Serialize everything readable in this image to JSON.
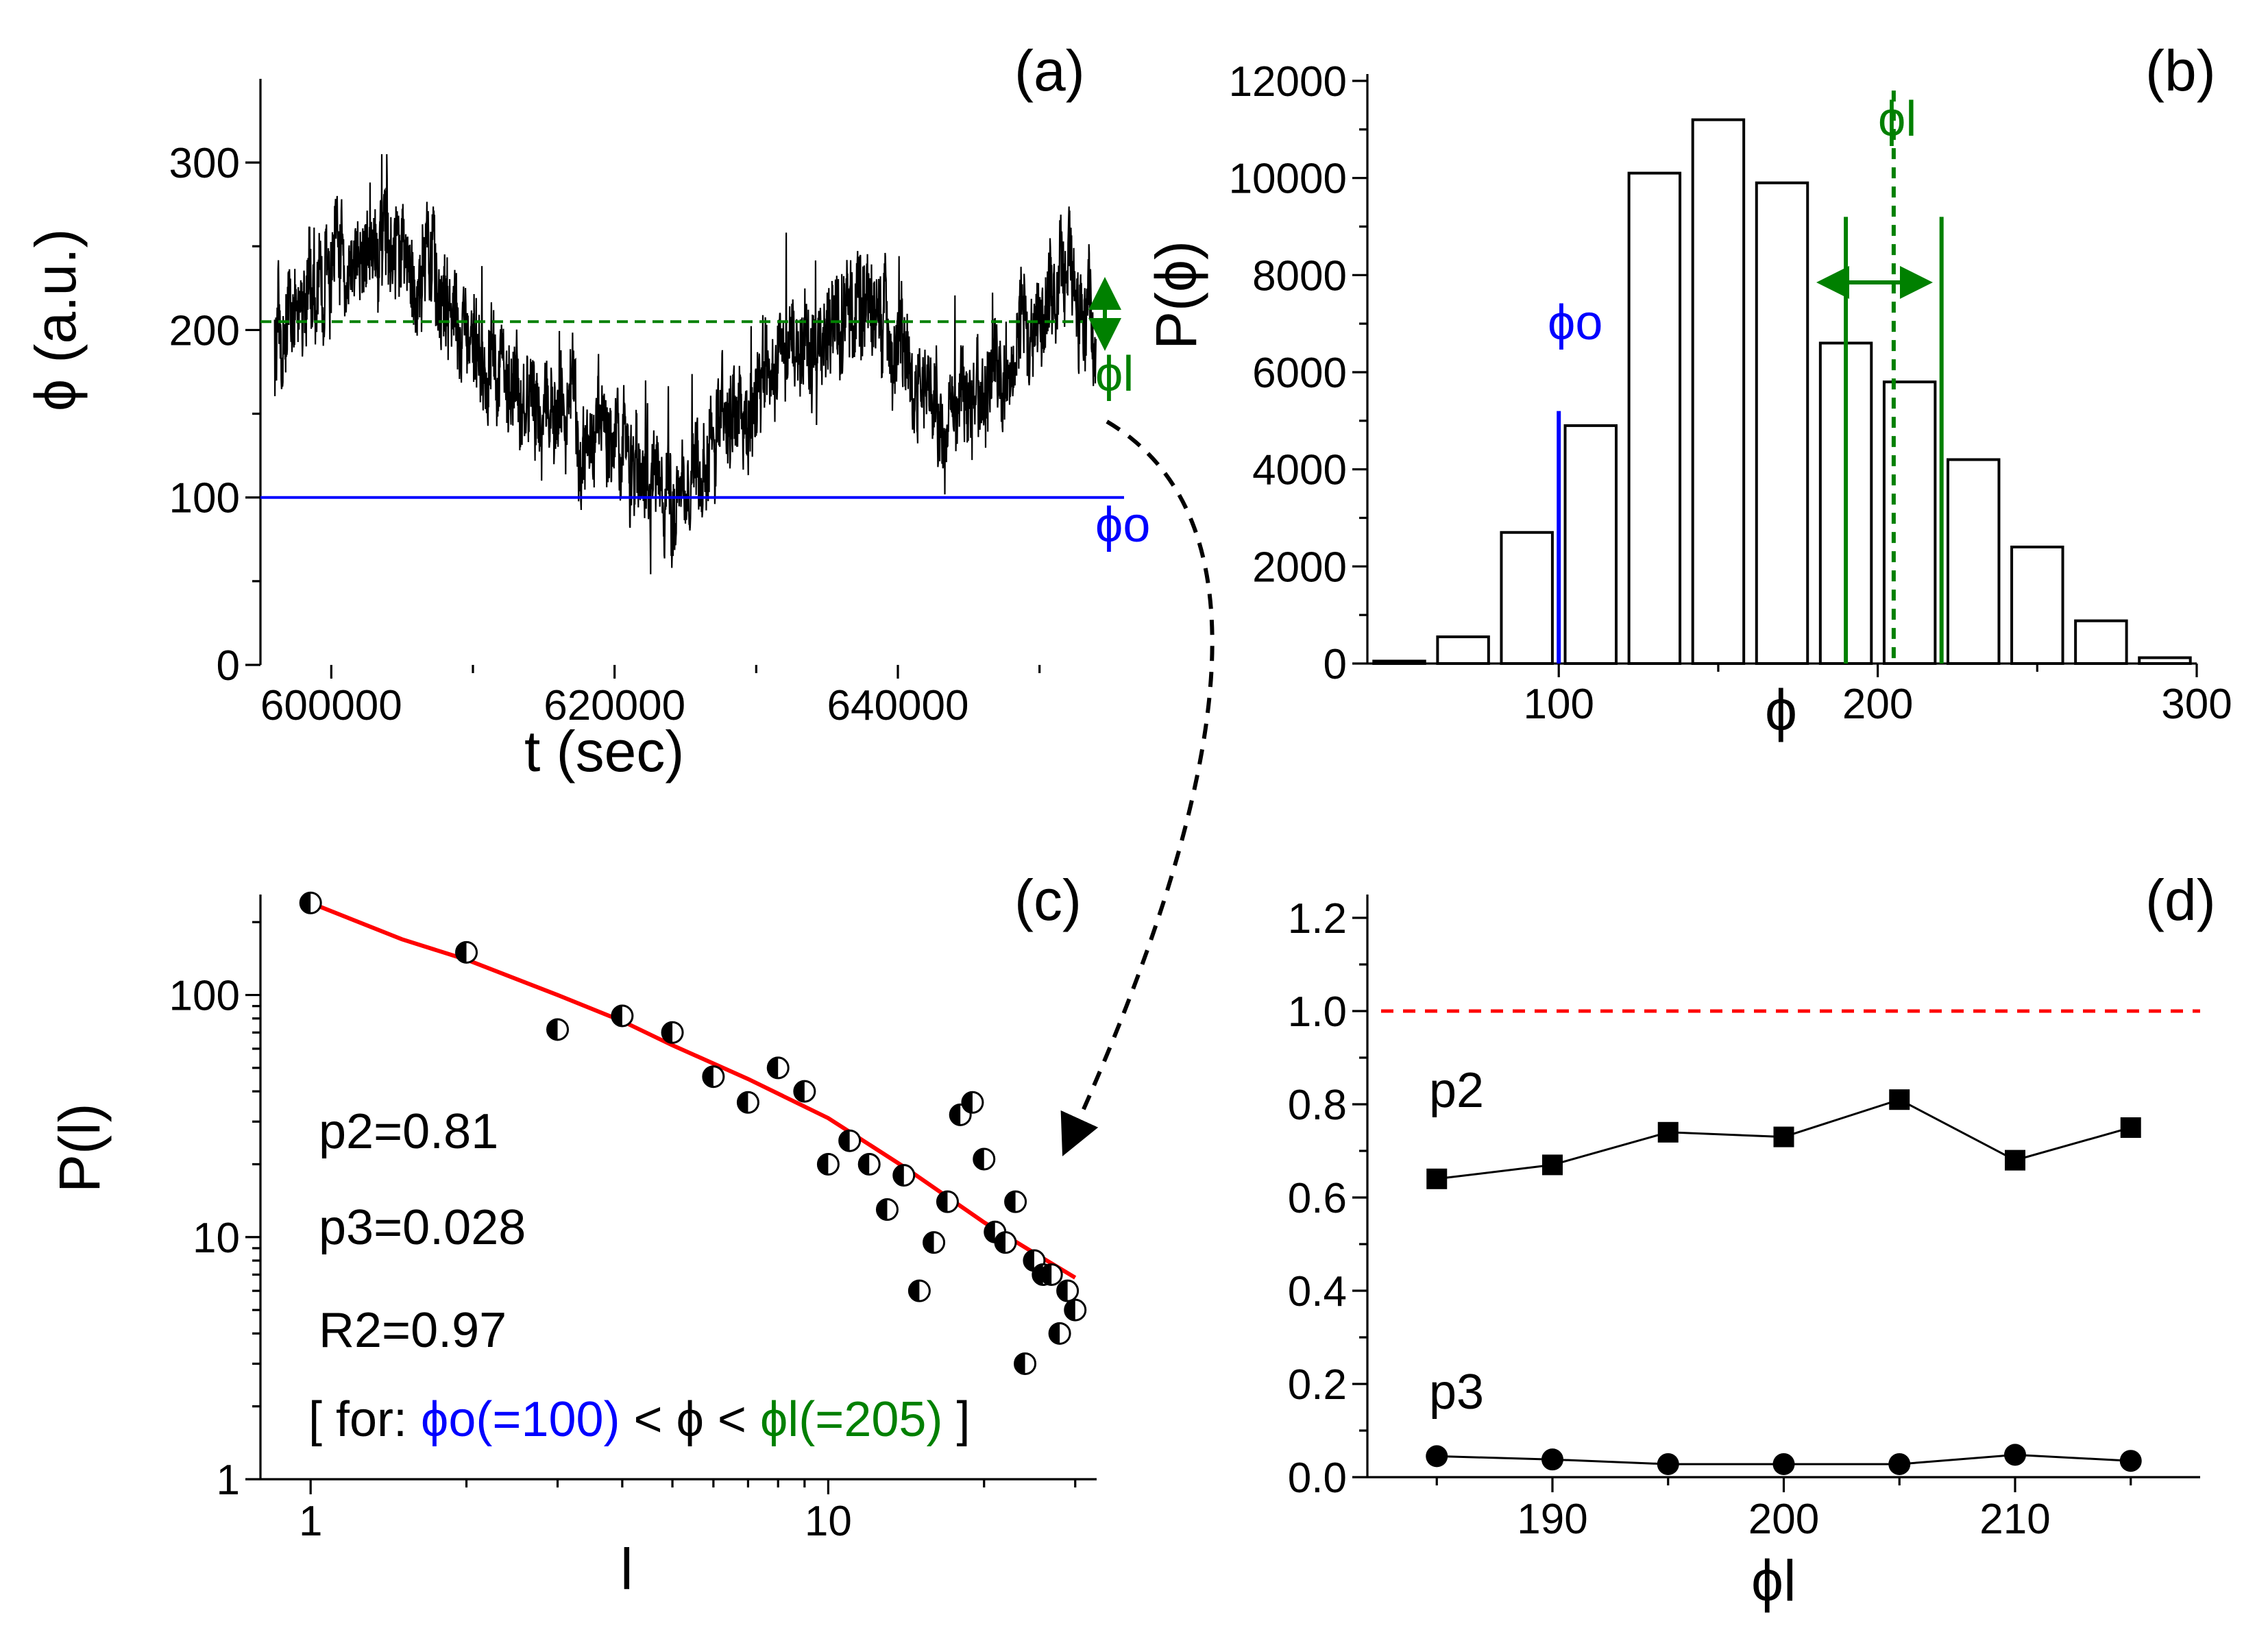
{
  "colors": {
    "trace": "#000000",
    "phi_o": "#0000ff",
    "phi_l": "#008000",
    "fit": "#ff0000",
    "reference": "#ff0000"
  },
  "chart_data": [
    {
      "panel": "(a)",
      "type": "line",
      "xlabel": "t (sec)",
      "ylabel": "ϕ (a.u.)",
      "xlim": [
        595000,
        655000
      ],
      "ylim": [
        0,
        350
      ],
      "xticks": [
        600000,
        620000,
        640000
      ],
      "yticks": [
        0,
        100,
        200,
        300
      ],
      "series": [
        {
          "name": "ϕ(t)",
          "x": [
            596000,
            600000,
            603000,
            607000,
            610000,
            613000,
            617000,
            620000,
            622000,
            624000,
            626000,
            629000,
            632000,
            635000,
            638000,
            640000,
            643000,
            646000,
            649000,
            652000,
            654000
          ],
          "y": [
            200,
            235,
            250,
            235,
            185,
            160,
            140,
            130,
            115,
            95,
            130,
            155,
            180,
            200,
            220,
            195,
            150,
            160,
            200,
            230,
            185
          ]
        }
      ],
      "hlines": [
        {
          "name": "ϕo",
          "y": 100,
          "style": "solid",
          "color": "#0000ff"
        },
        {
          "name": "ϕl",
          "y": 205,
          "style": "dashed",
          "color": "#008000"
        }
      ],
      "annotations": [
        "ϕo",
        "ϕl"
      ]
    },
    {
      "panel": "(b)",
      "type": "bar",
      "xlabel": "ϕ",
      "ylabel": "P(ϕ)",
      "xlim": [
        40,
        300
      ],
      "ylim": [
        0,
        12000
      ],
      "xticks": [
        100,
        200,
        300
      ],
      "yticks": [
        0,
        2000,
        4000,
        6000,
        8000,
        10000,
        12000
      ],
      "bin_centers": [
        50,
        70,
        90,
        110,
        130,
        150,
        170,
        190,
        210,
        230,
        250,
        270,
        290
      ],
      "values": [
        50,
        550,
        2700,
        4900,
        10100,
        11200,
        9900,
        6600,
        5800,
        4200,
        2400,
        880,
        120
      ],
      "vlines": [
        {
          "name": "ϕo",
          "x": 100,
          "style": "solid",
          "color": "#0000ff"
        },
        {
          "name": "ϕl",
          "x": 205,
          "style": "dashed",
          "color": "#008000"
        },
        {
          "x": 190,
          "style": "solid",
          "color": "#008000"
        },
        {
          "x": 220,
          "style": "solid",
          "color": "#008000"
        }
      ],
      "annotations": [
        "ϕo",
        "ϕl"
      ]
    },
    {
      "panel": "(c)",
      "type": "scatter",
      "xlabel": "l",
      "ylabel": "P(l)",
      "xscale": "log",
      "yscale": "log",
      "xlim": [
        0.8,
        33
      ],
      "ylim": [
        1,
        260
      ],
      "xticks": [
        1,
        10
      ],
      "yticks": [
        1,
        10,
        100
      ],
      "points": {
        "x": [
          1,
          2,
          3,
          4,
          5,
          6,
          7,
          8,
          9,
          10,
          11,
          12,
          13,
          14,
          15,
          16,
          17,
          18,
          19,
          20,
          21,
          22,
          23,
          24,
          25,
          26,
          27,
          28,
          29,
          30
        ],
        "y": [
          240,
          150,
          72,
          82,
          70,
          46,
          36,
          50,
          40,
          20,
          25,
          20,
          13,
          18,
          6,
          9.5,
          14,
          32,
          36,
          21,
          10.5,
          9.5,
          14,
          3,
          8,
          7,
          7,
          4,
          6,
          5
        ]
      },
      "fit": {
        "name": "fit",
        "x": [
          1,
          1.5,
          2,
          3,
          4,
          5,
          7,
          10,
          14,
          20,
          25,
          30
        ],
        "y": [
          240,
          170,
          140,
          100,
          78,
          62,
          45,
          31,
          19.5,
          11.5,
          8.6,
          6.8
        ]
      },
      "text": {
        "p2": "p2=0.81",
        "p3": "p3=0.028",
        "r2": "R2=0.97",
        "cond_open": "[ for: ",
        "cond_phio": "ϕo(=100)",
        "cond_mid": " < ϕ < ",
        "cond_phil": "ϕl(=205)",
        "cond_close": " ]"
      }
    },
    {
      "panel": "(d)",
      "type": "line",
      "xlabel": "ϕl",
      "ylabel": "",
      "xlim": [
        182,
        218
      ],
      "ylim": [
        0,
        1.25
      ],
      "xticks": [
        190,
        200,
        210
      ],
      "yticks": [
        0.0,
        0.2,
        0.4,
        0.6,
        0.8,
        1.0,
        1.2
      ],
      "categories": [
        185,
        190,
        195,
        200,
        205,
        210,
        215
      ],
      "series": [
        {
          "name": "p2",
          "values": [
            0.64,
            0.67,
            0.74,
            0.73,
            0.81,
            0.68,
            0.75
          ]
        },
        {
          "name": "p3",
          "values": [
            0.045,
            0.038,
            0.028,
            0.028,
            0.028,
            0.048,
            0.035
          ]
        }
      ],
      "hline": {
        "y": 1.0,
        "style": "dashed",
        "color": "#ff0000"
      }
    }
  ]
}
